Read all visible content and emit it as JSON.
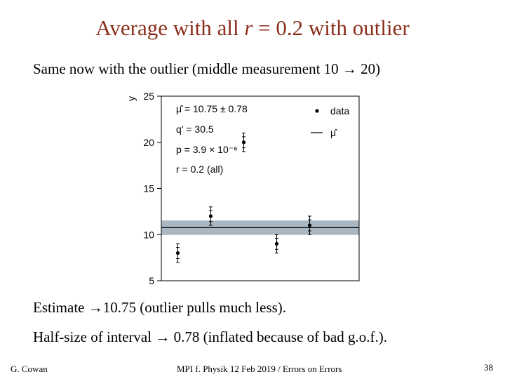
{
  "slide": {
    "title_prefix": "Average with all ",
    "title_italic": "r",
    "title_suffix": " = 0.2 with outlier",
    "line1": "Same now with the outlier (middle measurement 10 → 20)",
    "line2": "Estimate →10.75 (outlier pulls much less).",
    "line3": "Half-size of interval → 0.78 (inflated because of bad g.o.f.).",
    "footer_left": "G. Cowan",
    "footer_center": "MPI f. Physik 12 Feb 2019 / Errors on Errors",
    "page_number": "38"
  },
  "chart_data": {
    "type": "scatter",
    "ylabel": "y",
    "ylim": [
      5,
      25
    ],
    "yticks": [
      5,
      10,
      15,
      20,
      25
    ],
    "x": [
      1,
      2,
      3,
      4,
      5
    ],
    "y": [
      8.0,
      12.0,
      20.0,
      9.0,
      11.0
    ],
    "yerr": [
      1.0,
      1.0,
      1.0,
      1.0,
      1.0
    ],
    "yerr_inner": [
      0.6,
      0.6,
      0.6,
      0.6,
      0.6
    ],
    "mu_hat": 10.75,
    "mu_hat_err": 0.78,
    "band_color": "#a9b7c3",
    "annotations": [
      "μ̂ = 10.75 ± 0.78",
      "q' = 30.5",
      "p = 3.9 × 10⁻⁶",
      "r = 0.2 (all)"
    ],
    "legend": [
      "data",
      "μ̂"
    ]
  }
}
